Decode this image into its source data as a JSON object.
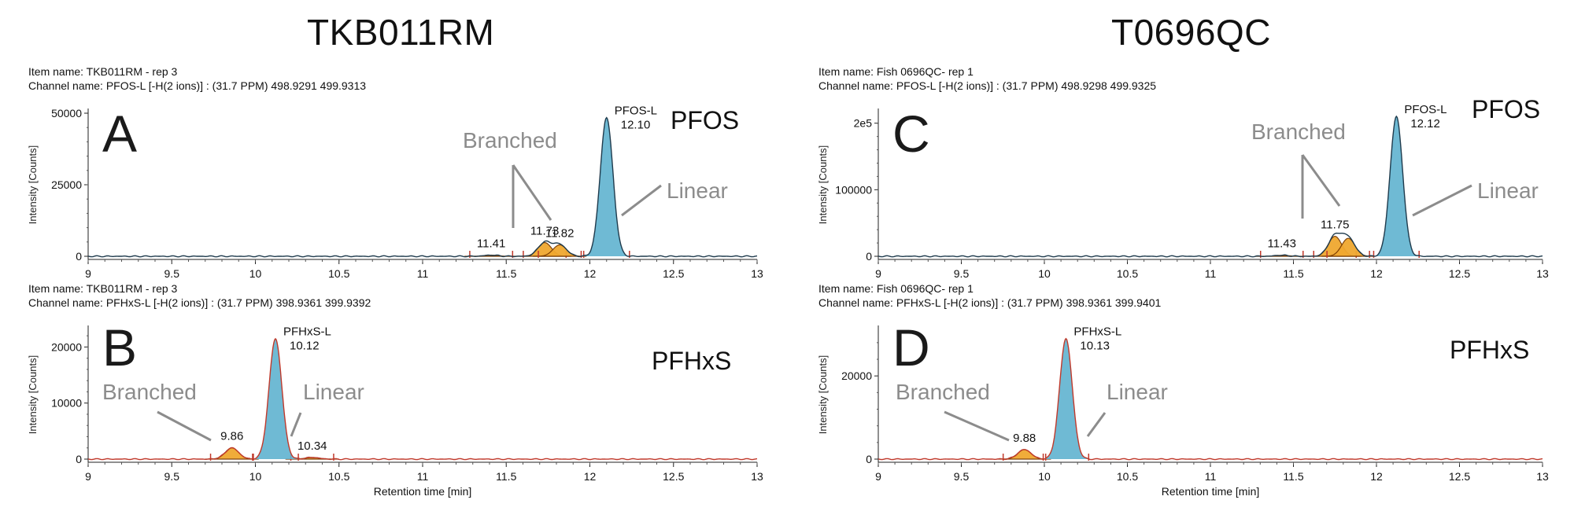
{
  "titles": {
    "left": "TKB011RM",
    "right": "T0696QC"
  },
  "colors": {
    "baseline_red": "#c0392b",
    "linear_fill": "#5fb3cf",
    "linear_dark": "#1f3b4d",
    "branched_fill": "#f0a830",
    "branched_dark": "#7a3b00",
    "annotation": "#8c8c8c"
  },
  "chart_data": [
    {
      "id": "A",
      "type": "line",
      "letter": "A",
      "compound": "PFOS",
      "info_line1": "Item name: TKB011RM - rep 3",
      "info_line2": "Channel name: PFOS-L [-H(2 ions)] : (31.7 PPM) 498.9291 499.9313",
      "ylabel": "Intensity [Counts]",
      "xlabel": "",
      "xlim": [
        9,
        13
      ],
      "ylim": [
        0,
        50000
      ],
      "xticks": [
        "9",
        "9.5",
        "10",
        "10.5",
        "11",
        "11.5",
        "12",
        "12.5",
        "13"
      ],
      "yticks": [
        {
          "v": 0,
          "label": "0"
        },
        {
          "v": 25000,
          "label": "25000"
        },
        {
          "v": 50000,
          "label": "50000"
        }
      ],
      "linear_peak": {
        "rt": 12.1,
        "height": 48500,
        "name": "PFOS-L",
        "rt_label": "12.10"
      },
      "branched_peaks": [
        {
          "rt": 11.41,
          "height": 400,
          "label": "11.41"
        },
        {
          "rt": 11.73,
          "height": 4800,
          "label": "11.73"
        },
        {
          "rt": 11.82,
          "height": 4000,
          "label": "11.82"
        }
      ],
      "annotations": {
        "branched": "Branched",
        "linear": "Linear"
      }
    },
    {
      "id": "B",
      "type": "line",
      "letter": "B",
      "compound": "PFHxS",
      "info_line1": "Item name: TKB011RM - rep 3",
      "info_line2": "Channel name: PFHxS-L [-H(2 ions)] : (31.7 PPM) 398.9361 399.9392",
      "ylabel": "Intensity [Counts]",
      "xlabel": "Retention time [min]",
      "xlim": [
        9,
        13
      ],
      "ylim": [
        0,
        23000
      ],
      "xticks": [
        "9",
        "9.5",
        "10",
        "10.5",
        "11",
        "11.5",
        "12",
        "12.5",
        "13"
      ],
      "yticks": [
        {
          "v": 0,
          "label": "0"
        },
        {
          "v": 10000,
          "label": "10000"
        },
        {
          "v": 20000,
          "label": "20000"
        }
      ],
      "linear_peak": {
        "rt": 10.12,
        "height": 21500,
        "name": "PFHxS-L",
        "rt_label": "10.12"
      },
      "branched_peaks": [
        {
          "rt": 9.86,
          "height": 2000,
          "label": "9.86"
        },
        {
          "rt": 10.34,
          "height": 300,
          "label": "10.34"
        }
      ],
      "annotations": {
        "branched": "Branched",
        "linear": "Linear"
      }
    },
    {
      "id": "C",
      "type": "line",
      "letter": "C",
      "compound": "PFOS",
      "info_line1": "Item name: Fish 0696QC- rep 1",
      "info_line2": "Channel name: PFOS-L [-H(2 ions)] : (31.7 PPM) 498.9298 499.9325",
      "ylabel": "Intensity [Counts]",
      "xlabel": "",
      "xlim": [
        9,
        13
      ],
      "ylim": [
        0,
        215000
      ],
      "xticks": [
        "9",
        "9.5",
        "10",
        "10.5",
        "11",
        "11.5",
        "12",
        "12.5",
        "13"
      ],
      "yticks": [
        {
          "v": 0,
          "label": "0"
        },
        {
          "v": 100000,
          "label": "100000"
        },
        {
          "v": 200000,
          "label": "2e5"
        }
      ],
      "linear_peak": {
        "rt": 12.12,
        "height": 210000,
        "name": "PFOS-L",
        "rt_label": "12.12"
      },
      "branched_peaks": [
        {
          "rt": 11.43,
          "height": 1500,
          "label": "11.43"
        },
        {
          "rt": 11.75,
          "height": 30000,
          "label": "11.75"
        },
        {
          "rt": 11.83,
          "height": 27000,
          "label": ""
        }
      ],
      "annotations": {
        "branched": "Branched",
        "linear": "Linear"
      }
    },
    {
      "id": "D",
      "type": "line",
      "letter": "D",
      "compound": "PFHxS",
      "info_line1": "Item name: Fish 0696QC- rep 1",
      "info_line2": "Channel name: PFHxS-L [-H(2 ions)] : (31.7 PPM) 398.9361 399.9401",
      "ylabel": "Intensity [Counts]",
      "xlabel": "Retention time [min]",
      "xlim": [
        9,
        13
      ],
      "ylim": [
        0,
        31000
      ],
      "xticks": [
        "9",
        "9.5",
        "10",
        "10.5",
        "11",
        "11.5",
        "12",
        "12.5",
        "13"
      ],
      "yticks": [
        {
          "v": 0,
          "label": "0"
        },
        {
          "v": 20000,
          "label": "20000"
        }
      ],
      "linear_peak": {
        "rt": 10.13,
        "height": 29000,
        "name": "PFHxS-L",
        "rt_label": "10.13"
      },
      "branched_peaks": [
        {
          "rt": 9.88,
          "height": 2300,
          "label": "9.88"
        }
      ],
      "annotations": {
        "branched": "Branched",
        "linear": "Linear"
      }
    }
  ]
}
